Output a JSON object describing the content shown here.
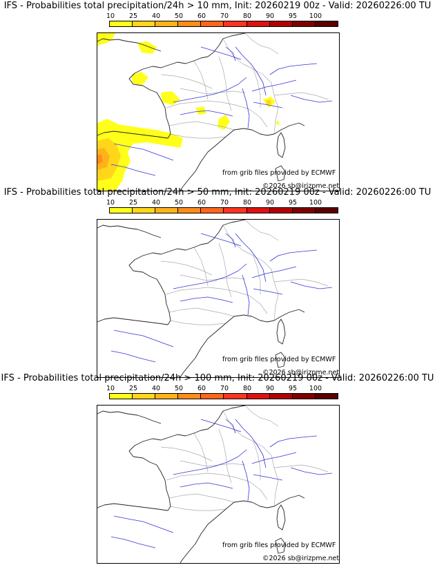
{
  "colors": {
    "scale": [
      "#ffff1a",
      "#ffd61a",
      "#ffb31a",
      "#ff8c1a",
      "#ff661a",
      "#ff3322",
      "#e01010",
      "#b30000",
      "#800000",
      "#5a0000"
    ],
    "coast": "#222222",
    "rivers": "#3333dd",
    "borders": "#aaaaaa"
  },
  "scale_labels": [
    "10",
    "25",
    "40",
    "50",
    "60",
    "70",
    "80",
    "90",
    "95",
    "100"
  ],
  "credits": {
    "source": "from grib files provided by ECMWF",
    "copyright": "©2026 sb@irizpme.net"
  },
  "panels": [
    {
      "title": "IFS - Probabilities total precipitation/24h > 10 mm, Init: 20260219 00z - Valid: 20260226:00 TU"
    },
    {
      "title": "IFS - Probabilities total precipitation/24h > 50 mm, Init: 20260219 00z - Valid: 20260226:00 TU"
    },
    {
      "title": "IFS - Probabilities total precipitation/24h > 100 mm, Init: 20260219 00z - Valid: 20260226:00 TU"
    }
  ]
}
